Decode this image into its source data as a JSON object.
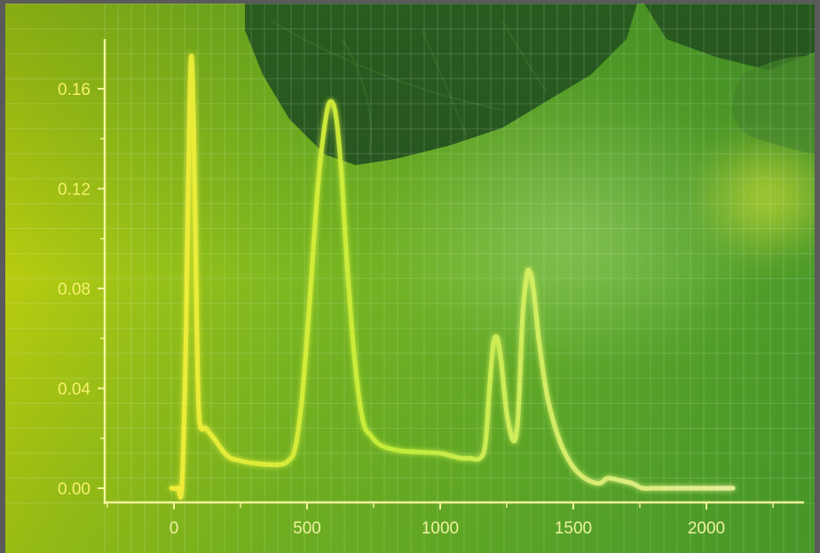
{
  "chart_data": {
    "type": "line",
    "title": "",
    "xlabel": "",
    "ylabel": "",
    "xlim": [
      -260,
      2390
    ],
    "ylim": [
      -0.006,
      0.18
    ],
    "x_ticks": [
      0,
      500,
      1000,
      1500,
      2000
    ],
    "x_tick_labels": [
      "0",
      "500",
      "1000",
      "1500",
      "2000"
    ],
    "y_ticks": [
      0.0,
      0.04,
      0.08,
      0.12,
      0.16
    ],
    "y_tick_labels": [
      "0.00",
      "0.04",
      "0.08",
      "0.12",
      "0.16"
    ],
    "grid": true,
    "legend": "none",
    "series": [
      {
        "x": [
          -10,
          15,
          30,
          45,
          55,
          65,
          75,
          85,
          95,
          120,
          150,
          200,
          250,
          300,
          350,
          400,
          430,
          455,
          480,
          510,
          540,
          570,
          590,
          610,
          630,
          650,
          680,
          710,
          740,
          780,
          850,
          920,
          1000,
          1040,
          1080,
          1110,
          1150,
          1170,
          1185,
          1200,
          1215,
          1230,
          1250,
          1275,
          1290,
          1300,
          1310,
          1325,
          1335,
          1350,
          1370,
          1400,
          1430,
          1460,
          1490,
          1520,
          1560,
          1600,
          1630,
          1680,
          1720,
          1760,
          1800,
          1900,
          2000,
          2100
        ],
        "y": [
          0.0,
          0.0,
          0.001,
          0.06,
          0.13,
          0.173,
          0.14,
          0.07,
          0.028,
          0.024,
          0.02,
          0.013,
          0.011,
          0.01,
          0.0095,
          0.0095,
          0.011,
          0.016,
          0.035,
          0.075,
          0.12,
          0.148,
          0.155,
          0.148,
          0.125,
          0.09,
          0.05,
          0.027,
          0.021,
          0.017,
          0.015,
          0.0145,
          0.014,
          0.013,
          0.012,
          0.012,
          0.012,
          0.018,
          0.04,
          0.058,
          0.06,
          0.05,
          0.03,
          0.019,
          0.025,
          0.045,
          0.07,
          0.085,
          0.087,
          0.08,
          0.06,
          0.038,
          0.025,
          0.016,
          0.01,
          0.006,
          0.003,
          0.002,
          0.004,
          0.003,
          0.002,
          0.0,
          0.0,
          0.0,
          0.0,
          0.0
        ],
        "color": "#eef26a"
      }
    ]
  }
}
